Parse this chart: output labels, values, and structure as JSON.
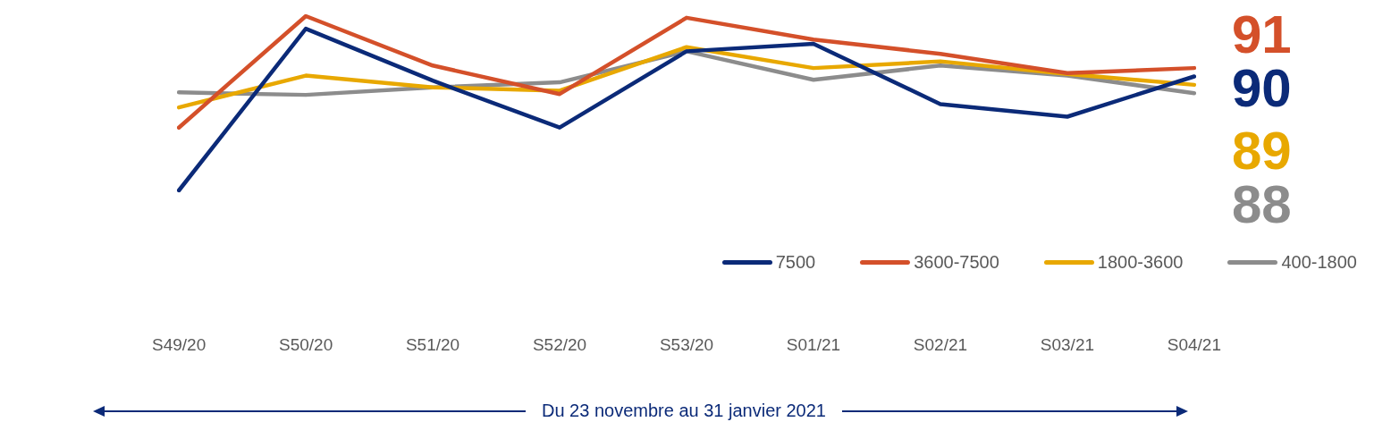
{
  "chart_data": {
    "type": "line",
    "categories": [
      "S49/20",
      "S50/20",
      "S51/20",
      "S52/20",
      "S53/20",
      "S01/21",
      "S02/21",
      "S03/21",
      "S04/21"
    ],
    "series": [
      {
        "name": "7500",
        "color": "#0b2a78",
        "values": [
          76.4,
          95.7,
          89.5,
          83.9,
          93.0,
          93.9,
          86.7,
          85.2,
          90
        ],
        "value_labels": [
          null,
          null,
          null,
          null,
          null,
          null,
          null,
          null,
          "90"
        ]
      },
      {
        "name": "3600-7500",
        "color": "#d4502a",
        "values": [
          83.9,
          97.2,
          91.3,
          87.9,
          97.0,
          94.4,
          92.7,
          90.4,
          91
        ],
        "value_labels": [
          null,
          null,
          null,
          null,
          null,
          null,
          null,
          null,
          "91"
        ]
      },
      {
        "name": "1800-3600",
        "color": "#e8a800",
        "values": [
          86.3,
          90.1,
          88.7,
          88.3,
          93.5,
          91.0,
          91.8,
          90.3,
          89
        ],
        "value_labels": [
          null,
          null,
          null,
          null,
          null,
          null,
          null,
          null,
          "89"
        ]
      },
      {
        "name": "400-1800",
        "color": "#8c8c8c",
        "values": [
          88.1,
          87.8,
          88.7,
          89.3,
          93.0,
          89.6,
          91.3,
          90.1,
          88
        ],
        "value_labels": [
          null,
          null,
          null,
          null,
          null,
          null,
          null,
          null,
          "88"
        ]
      }
    ],
    "tick_labels": "x",
    "grid": false,
    "legend": "bottom right",
    "marker": "none",
    "line_style": "solid",
    "annotations": [
      "Du 23 novembre au 31 janvier 2021"
    ]
  }
}
